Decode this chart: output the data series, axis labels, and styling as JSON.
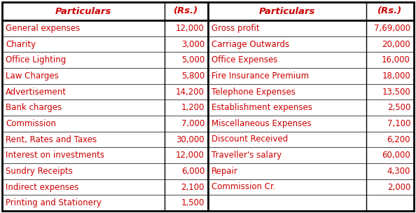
{
  "left_particulars": [
    "General expenses",
    "Charity",
    "Office Lighting",
    "Law Charges",
    "Advertisement",
    "Bank charges",
    "Commission",
    "Rent, Rates and Taxes",
    "Interest on investments",
    "Sundry Receipts",
    "Indirect expenses",
    "Printing and Stationery"
  ],
  "left_values": [
    "12,000",
    "3,000",
    "5,000",
    "5,800",
    "14,200",
    "1,200",
    "7,000",
    "30,000",
    "12,000",
    "6,000",
    "2,100",
    "1,500"
  ],
  "right_particulars": [
    "Gross profit",
    "Carriage Outwards",
    "Office Expenses",
    "Fire Insurance Premium",
    "Telephone Expenses",
    "Establishment expenses",
    "Miscellaneous Expenses",
    "Discount Received",
    "Traveller's salary",
    "Repair",
    "Commission Cr.",
    ""
  ],
  "right_values": [
    "7,69,000",
    "20,000",
    "16,000",
    "18,000",
    "13,500",
    "2,500",
    "7,100",
    "6,200",
    "60,000",
    "4,300",
    "2,000",
    ""
  ],
  "header_left_particular": "Particulars",
  "header_left_value": "(Rs.)",
  "header_right_particular": "Particulars",
  "header_right_value": "(Rs.)",
  "text_color": "#cc0000",
  "bg_color": "#ffffff",
  "border_color": "#000000",
  "font_size": 8.5,
  "header_font_size": 9.5
}
